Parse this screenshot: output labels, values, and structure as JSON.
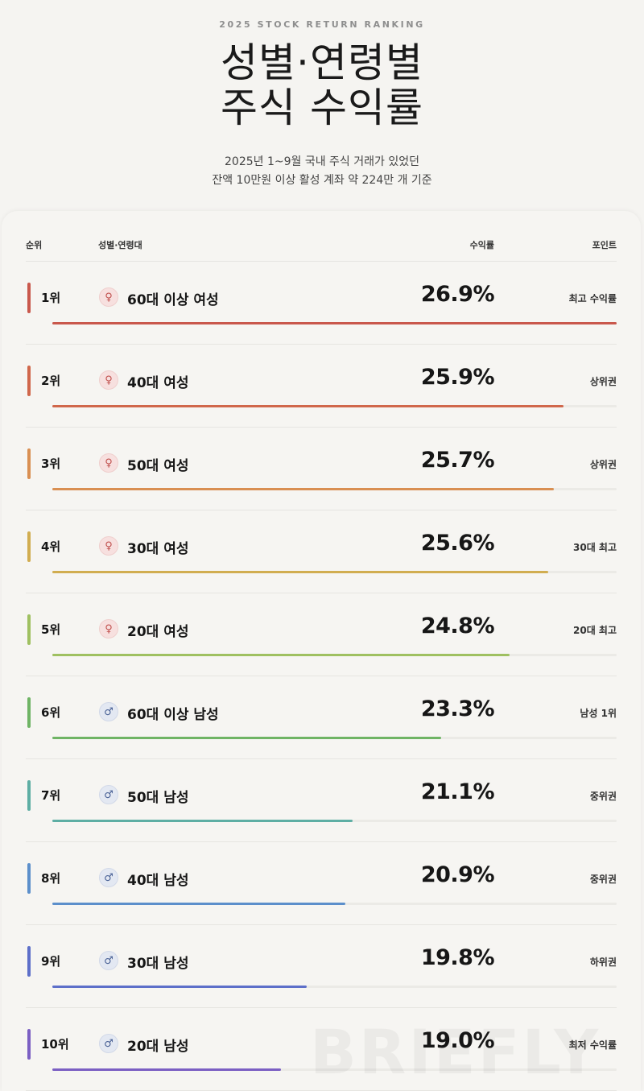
{
  "header": {
    "eyebrow": "2025 STOCK RETURN RANKING",
    "title_line1": "성별·연령별",
    "title_line2": "주식 수익률",
    "subtitle_line1": "2025년 1~9월 국내 주식 거래가 있었던",
    "subtitle_line2": "잔액 10만원 이상 활성 계좌 약 224만 개 기준"
  },
  "columns": {
    "rank": "순위",
    "group": "성별·연령대",
    "return": "수익률",
    "point": "포인트"
  },
  "watermark": "BRIEFLY",
  "chart_data": {
    "type": "bar",
    "categories": [
      "60대 이상 여성",
      "40대 여성",
      "50대 여성",
      "30대 여성",
      "20대 여성",
      "60대 이상 남성",
      "50대 남성",
      "40대 남성",
      "30대 남성",
      "20대 남성"
    ],
    "values": [
      26.9,
      25.9,
      25.7,
      25.6,
      24.8,
      23.3,
      21.1,
      20.9,
      19.8,
      19.0
    ],
    "unit": "%",
    "rows": [
      {
        "rank": "1위",
        "gender": "f",
        "group": "60대 이상 여성",
        "value": 26.9,
        "value_label": "26.9%",
        "point": "최고 수익률",
        "color": "#c9584c"
      },
      {
        "rank": "2위",
        "gender": "f",
        "group": "40대 여성",
        "value": 25.9,
        "value_label": "25.9%",
        "point": "상위권",
        "color": "#d0674b"
      },
      {
        "rank": "3위",
        "gender": "f",
        "group": "50대 여성",
        "value": 25.7,
        "value_label": "25.7%",
        "point": "상위권",
        "color": "#d98f52"
      },
      {
        "rank": "4위",
        "gender": "f",
        "group": "30대 여성",
        "value": 25.6,
        "value_label": "25.6%",
        "point": "30대 최고",
        "color": "#d1ad50"
      },
      {
        "rank": "5위",
        "gender": "f",
        "group": "20대 여성",
        "value": 24.8,
        "value_label": "24.8%",
        "point": "20대 최고",
        "color": "#9fc061"
      },
      {
        "rank": "6위",
        "gender": "m",
        "group": "60대 이상 남성",
        "value": 23.3,
        "value_label": "23.3%",
        "point": "남성 1위",
        "color": "#6fb465"
      },
      {
        "rank": "7위",
        "gender": "m",
        "group": "50대 남성",
        "value": 21.1,
        "value_label": "21.1%",
        "point": "중위권",
        "color": "#5eaea4"
      },
      {
        "rank": "8위",
        "gender": "m",
        "group": "40대 남성",
        "value": 20.9,
        "value_label": "20.9%",
        "point": "중위권",
        "color": "#5c8fcb"
      },
      {
        "rank": "9위",
        "gender": "m",
        "group": "30대 남성",
        "value": 19.8,
        "value_label": "19.8%",
        "point": "하위권",
        "color": "#5d6fc9"
      },
      {
        "rank": "10위",
        "gender": "m",
        "group": "20대 남성",
        "value": 19.0,
        "value_label": "19.0%",
        "point": "최저 수익률",
        "color": "#7b5fc3"
      }
    ]
  }
}
